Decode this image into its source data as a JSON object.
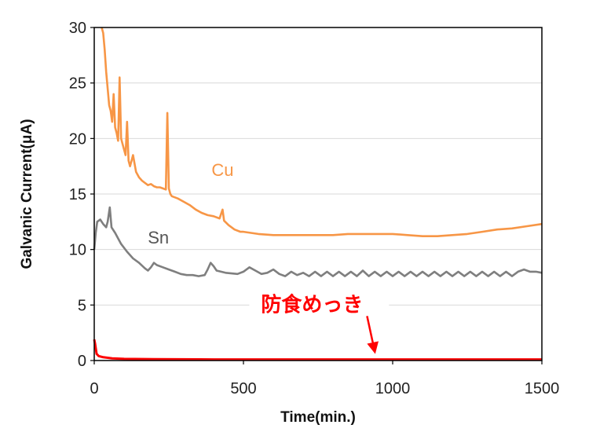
{
  "chart_data": {
    "type": "line",
    "xlabel": "Time(min.)",
    "ylabel": "Galvanic Current(μA)",
    "xlim": [
      0,
      1500
    ],
    "ylim": [
      0,
      30
    ],
    "xticks": [
      0,
      500,
      1000,
      1500
    ],
    "yticks": [
      0,
      5,
      10,
      15,
      20,
      25,
      30
    ],
    "grid": "horizontal",
    "series": [
      {
        "name": "Cu",
        "color": "#F79646",
        "points": [
          [
            25,
            30
          ],
          [
            30,
            29.5
          ],
          [
            35,
            28
          ],
          [
            40,
            26
          ],
          [
            45,
            24.5
          ],
          [
            50,
            23
          ],
          [
            55,
            22.5
          ],
          [
            60,
            21.5
          ],
          [
            65,
            24
          ],
          [
            70,
            21
          ],
          [
            75,
            20.5
          ],
          [
            80,
            19.8
          ],
          [
            85,
            25.5
          ],
          [
            90,
            20
          ],
          [
            95,
            19.5
          ],
          [
            100,
            19
          ],
          [
            105,
            18.5
          ],
          [
            110,
            21.5
          ],
          [
            115,
            18
          ],
          [
            120,
            17.5
          ],
          [
            130,
            18.5
          ],
          [
            140,
            17
          ],
          [
            150,
            16.5
          ],
          [
            160,
            16.2
          ],
          [
            170,
            16
          ],
          [
            180,
            15.8
          ],
          [
            190,
            15.9
          ],
          [
            200,
            15.7
          ],
          [
            210,
            15.6
          ],
          [
            220,
            15.6
          ],
          [
            230,
            15.5
          ],
          [
            240,
            15.4
          ],
          [
            245,
            22.3
          ],
          [
            250,
            15.5
          ],
          [
            255,
            15
          ],
          [
            260,
            14.8
          ],
          [
            280,
            14.6
          ],
          [
            300,
            14.3
          ],
          [
            320,
            14
          ],
          [
            340,
            13.6
          ],
          [
            360,
            13.3
          ],
          [
            380,
            13.1
          ],
          [
            400,
            13
          ],
          [
            420,
            12.8
          ],
          [
            430,
            13.6
          ],
          [
            435,
            12.6
          ],
          [
            450,
            12.2
          ],
          [
            470,
            11.8
          ],
          [
            490,
            11.6
          ],
          [
            500,
            11.6
          ],
          [
            550,
            11.4
          ],
          [
            600,
            11.3
          ],
          [
            650,
            11.3
          ],
          [
            700,
            11.3
          ],
          [
            750,
            11.3
          ],
          [
            800,
            11.3
          ],
          [
            850,
            11.4
          ],
          [
            900,
            11.4
          ],
          [
            950,
            11.4
          ],
          [
            1000,
            11.4
          ],
          [
            1050,
            11.3
          ],
          [
            1100,
            11.2
          ],
          [
            1150,
            11.2
          ],
          [
            1200,
            11.3
          ],
          [
            1250,
            11.4
          ],
          [
            1300,
            11.6
          ],
          [
            1350,
            11.8
          ],
          [
            1400,
            11.9
          ],
          [
            1450,
            12.1
          ],
          [
            1500,
            12.3
          ]
        ]
      },
      {
        "name": "Sn",
        "color": "#7F7F7F",
        "points": [
          [
            0,
            10
          ],
          [
            5,
            11.5
          ],
          [
            10,
            12.5
          ],
          [
            20,
            12.7
          ],
          [
            30,
            12.3
          ],
          [
            40,
            12
          ],
          [
            45,
            12.5
          ],
          [
            52,
            13.8
          ],
          [
            58,
            12
          ],
          [
            70,
            11.5
          ],
          [
            90,
            10.5
          ],
          [
            110,
            9.8
          ],
          [
            130,
            9.2
          ],
          [
            150,
            8.8
          ],
          [
            170,
            8.3
          ],
          [
            180,
            8.1
          ],
          [
            190,
            8.4
          ],
          [
            200,
            8.8
          ],
          [
            210,
            8.6
          ],
          [
            230,
            8.4
          ],
          [
            250,
            8.2
          ],
          [
            270,
            8
          ],
          [
            290,
            7.8
          ],
          [
            310,
            7.7
          ],
          [
            330,
            7.7
          ],
          [
            350,
            7.6
          ],
          [
            370,
            7.7
          ],
          [
            380,
            8.2
          ],
          [
            390,
            8.8
          ],
          [
            400,
            8.5
          ],
          [
            410,
            8.1
          ],
          [
            440,
            7.9
          ],
          [
            480,
            7.8
          ],
          [
            500,
            8
          ],
          [
            520,
            8.4
          ],
          [
            540,
            8.1
          ],
          [
            560,
            7.8
          ],
          [
            580,
            7.9
          ],
          [
            600,
            8.2
          ],
          [
            620,
            7.8
          ],
          [
            640,
            7.6
          ],
          [
            660,
            8
          ],
          [
            680,
            7.7
          ],
          [
            700,
            7.9
          ],
          [
            720,
            7.6
          ],
          [
            740,
            8
          ],
          [
            760,
            7.6
          ],
          [
            780,
            8
          ],
          [
            800,
            7.6
          ],
          [
            820,
            8
          ],
          [
            840,
            7.6
          ],
          [
            860,
            8
          ],
          [
            880,
            7.6
          ],
          [
            900,
            8.1
          ],
          [
            920,
            7.6
          ],
          [
            940,
            8
          ],
          [
            960,
            7.6
          ],
          [
            980,
            8
          ],
          [
            1000,
            7.6
          ],
          [
            1020,
            8
          ],
          [
            1040,
            7.6
          ],
          [
            1060,
            8
          ],
          [
            1080,
            7.6
          ],
          [
            1100,
            8
          ],
          [
            1120,
            7.6
          ],
          [
            1140,
            8
          ],
          [
            1160,
            7.6
          ],
          [
            1180,
            8
          ],
          [
            1200,
            7.6
          ],
          [
            1220,
            8
          ],
          [
            1240,
            7.6
          ],
          [
            1260,
            8
          ],
          [
            1280,
            7.6
          ],
          [
            1300,
            8
          ],
          [
            1320,
            7.6
          ],
          [
            1340,
            8
          ],
          [
            1360,
            7.6
          ],
          [
            1380,
            8
          ],
          [
            1400,
            7.6
          ],
          [
            1420,
            8
          ],
          [
            1440,
            8.2
          ],
          [
            1460,
            8
          ],
          [
            1480,
            8
          ],
          [
            1500,
            7.9
          ]
        ]
      },
      {
        "name": "防食めっき",
        "color": "#FF0000",
        "points": [
          [
            0,
            1.9
          ],
          [
            3,
            1.5
          ],
          [
            8,
            0.6
          ],
          [
            15,
            0.4
          ],
          [
            30,
            0.3
          ],
          [
            60,
            0.2
          ],
          [
            100,
            0.15
          ],
          [
            200,
            0.12
          ],
          [
            400,
            0.1
          ],
          [
            800,
            0.1
          ],
          [
            1200,
            0.1
          ],
          [
            1500,
            0.1
          ]
        ]
      }
    ],
    "annotations": [
      {
        "text": "Cu",
        "x": 430,
        "y": 17.2,
        "color": "#F79646"
      },
      {
        "text": "Sn",
        "x": 215,
        "y": 11.1,
        "color": "#555555"
      },
      {
        "text": "防食めっき",
        "x": 730,
        "y": 5,
        "color": "#FF0000",
        "arrow_to": [
          940,
          0.8
        ]
      }
    ]
  }
}
